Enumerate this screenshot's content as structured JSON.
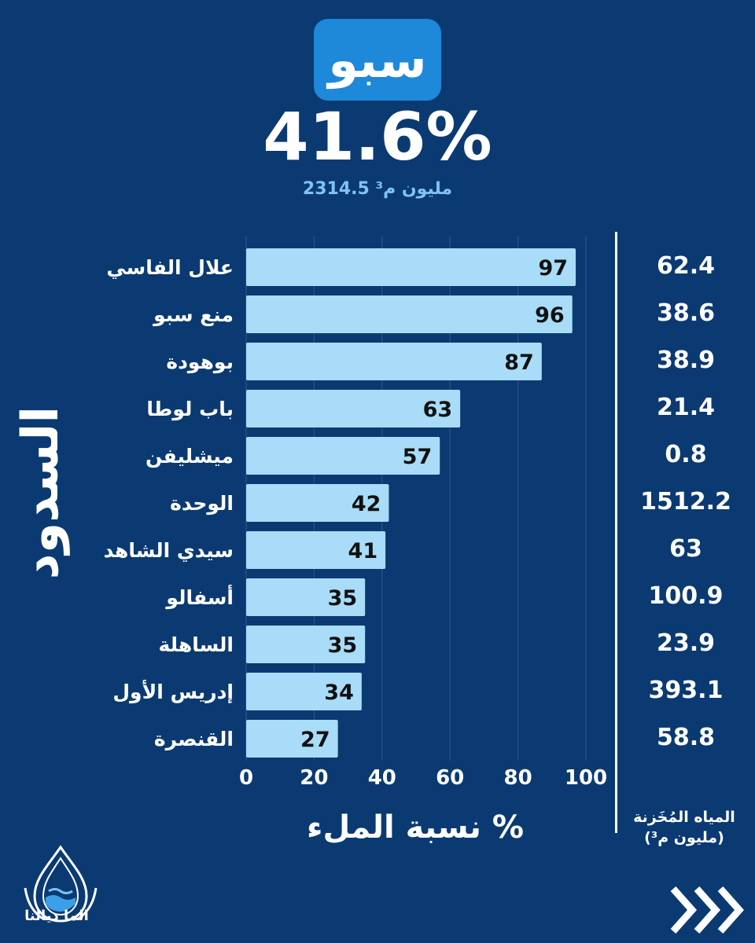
{
  "header": {
    "basin_name": "سبو",
    "fill_rate": "41.6%",
    "volume": "2314.5 مليون م³"
  },
  "side_title": "السدود",
  "chart_data": {
    "type": "bar",
    "orientation": "horizontal",
    "categories": [
      "علال الفاسي",
      "منع سبو",
      "بوهودة",
      "باب لوطا",
      "ميشليفن",
      "الوحدة",
      "سيدي الشاهد",
      "أسفالو",
      "الساهلة",
      "إدريس الأول",
      "القنصرة"
    ],
    "values": [
      97,
      96,
      87,
      63,
      57,
      42,
      41,
      35,
      35,
      34,
      27
    ],
    "xlabel": "نسبة الملء %",
    "xlim": [
      0,
      100
    ],
    "xticks": [
      "0",
      "20",
      "40",
      "60",
      "80",
      "100"
    ],
    "grid": true
  },
  "storage": {
    "title_line1": "المياه المُخَزنة",
    "title_line2": "(مليون م³)",
    "values": [
      "62.4",
      "38.6",
      "38.9",
      "21.4",
      "0.8",
      "1512.2",
      "63",
      "100.9",
      "23.9",
      "393.1",
      "58.8"
    ]
  },
  "logo": {
    "text": "الما ديالنا"
  },
  "colors": {
    "background": "#0b3a72",
    "bar": "#a8dcf8",
    "badge": "#1e88d9",
    "accent_text": "#7fc3f5"
  }
}
